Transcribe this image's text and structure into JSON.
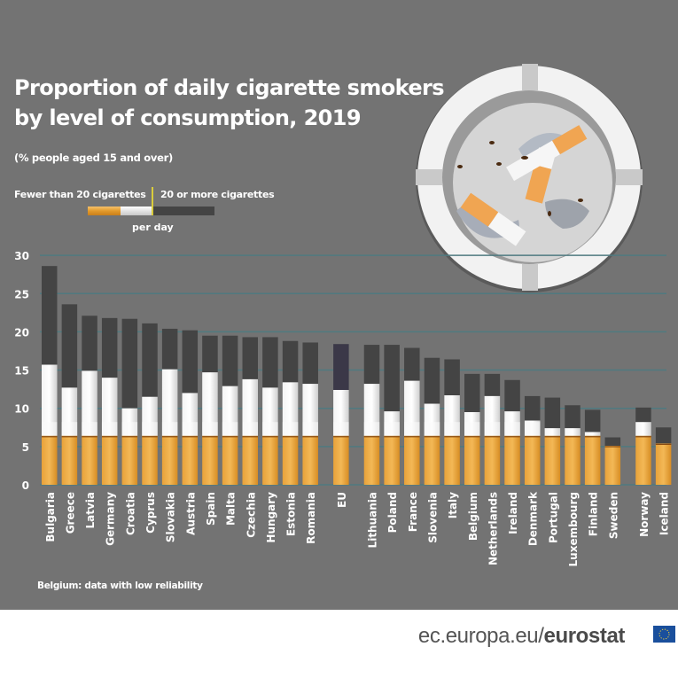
{
  "header": {
    "title_line1": "Proportion of daily cigarette smokers",
    "title_line2": "by level of consumption, 2019",
    "subtitle": "(% people aged 15 and over)"
  },
  "legend": {
    "fewer_label": "Fewer than 20 cigarettes",
    "more_label": "20 or more cigarettes",
    "per_day_label": "per day"
  },
  "note": "Belgium: data with low reliability",
  "footer": {
    "site_prefix": "ec.europa.eu/",
    "site_brand": "eurostat",
    "flag_icon": "eu-flag-icon"
  },
  "colors": {
    "background": "#737373",
    "bar_more": "#444444",
    "bar_more_eu": "#3b3848",
    "bar_fewer": "#e6e6e6",
    "filter": "#e8a33a",
    "gridline": "#4f7a80",
    "text": "#ffffff"
  },
  "chart_data": {
    "type": "bar",
    "stacked": true,
    "title": "Proportion of daily cigarette smokers by level of consumption, 2019",
    "subtitle": "(% people aged 15 and over)",
    "xlabel": "",
    "ylabel": "",
    "ylim": [
      0,
      30
    ],
    "yticks": [
      0,
      5,
      10,
      15,
      20,
      25,
      30
    ],
    "grid": true,
    "legend_position": "top-left",
    "categories": [
      "Bulgaria",
      "Greece",
      "Latvia",
      "Germany",
      "Croatia",
      "Cyprus",
      "Slovakia",
      "Austria",
      "Spain",
      "Malta",
      "Czechia",
      "Hungary",
      "Estonia",
      "Romania",
      "EU",
      "Lithuania",
      "Poland",
      "France",
      "Slovenia",
      "Italy",
      "Belgium",
      "Netherlands",
      "Ireland",
      "Denmark",
      "Portugal",
      "Luxembourg",
      "Finland",
      "Sweden",
      "Norway",
      "Iceland"
    ],
    "series": [
      {
        "name": "Fewer than 20 cigarettes per day",
        "values": [
          15.7,
          12.7,
          14.9,
          14.0,
          10.0,
          11.5,
          15.1,
          12.0,
          14.7,
          12.9,
          13.8,
          12.7,
          13.4,
          13.2,
          12.4,
          13.2,
          9.6,
          13.6,
          10.6,
          11.7,
          9.5,
          11.6,
          9.6,
          8.4,
          7.4,
          7.4,
          6.9,
          5.1,
          8.2,
          5.4
        ]
      },
      {
        "name": "20 or more cigarettes per day",
        "values": [
          12.9,
          10.9,
          7.2,
          7.8,
          11.7,
          9.6,
          5.3,
          8.2,
          4.8,
          6.6,
          5.5,
          6.6,
          5.4,
          5.4,
          6.0,
          5.1,
          8.7,
          4.3,
          6.0,
          4.7,
          5.0,
          2.9,
          4.1,
          3.2,
          4.0,
          3.0,
          2.9,
          1.1,
          1.9,
          2.1
        ]
      }
    ]
  }
}
